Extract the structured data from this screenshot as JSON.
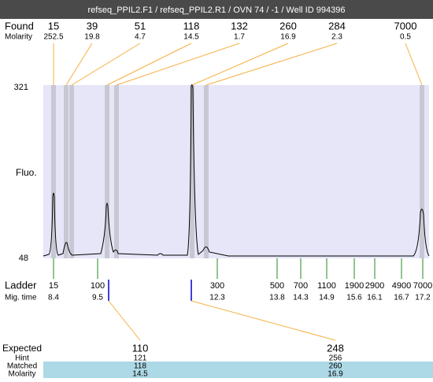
{
  "title": "refseq_PPIL2.F1 / refseq_PPIL2.R1 / OVN 74 / -1 / Well ID 994396",
  "found": {
    "label": "Found",
    "values": [
      15,
      39,
      51,
      118,
      132,
      260,
      284,
      7000
    ]
  },
  "molarity": {
    "label": "Molarity",
    "values": [
      252.5,
      19.8,
      4.7,
      14.5,
      1.7,
      16.9,
      2.3,
      0.5
    ]
  },
  "y_axis": {
    "label": "Fluo.",
    "max": 321,
    "min": 48
  },
  "ladder": {
    "label": "Ladder",
    "sizes": [
      15,
      100,
      300,
      500,
      700,
      1100,
      1900,
      2900,
      4900,
      7000
    ]
  },
  "mig_time": {
    "label": "Mig. time",
    "values": [
      8.4,
      9.5,
      12.3,
      13.8,
      14.3,
      14.9,
      15.6,
      16.1,
      16.7,
      17.2
    ]
  },
  "expected": {
    "label": "Expected",
    "values": [
      110,
      248
    ]
  },
  "hint": {
    "label": "Hint",
    "values": [
      121,
      256
    ]
  },
  "matched": {
    "label": "Matched",
    "values": [
      118,
      260
    ]
  },
  "matched_molarity": {
    "label": "Molarity",
    "values": [
      14.5,
      16.9
    ]
  }
}
